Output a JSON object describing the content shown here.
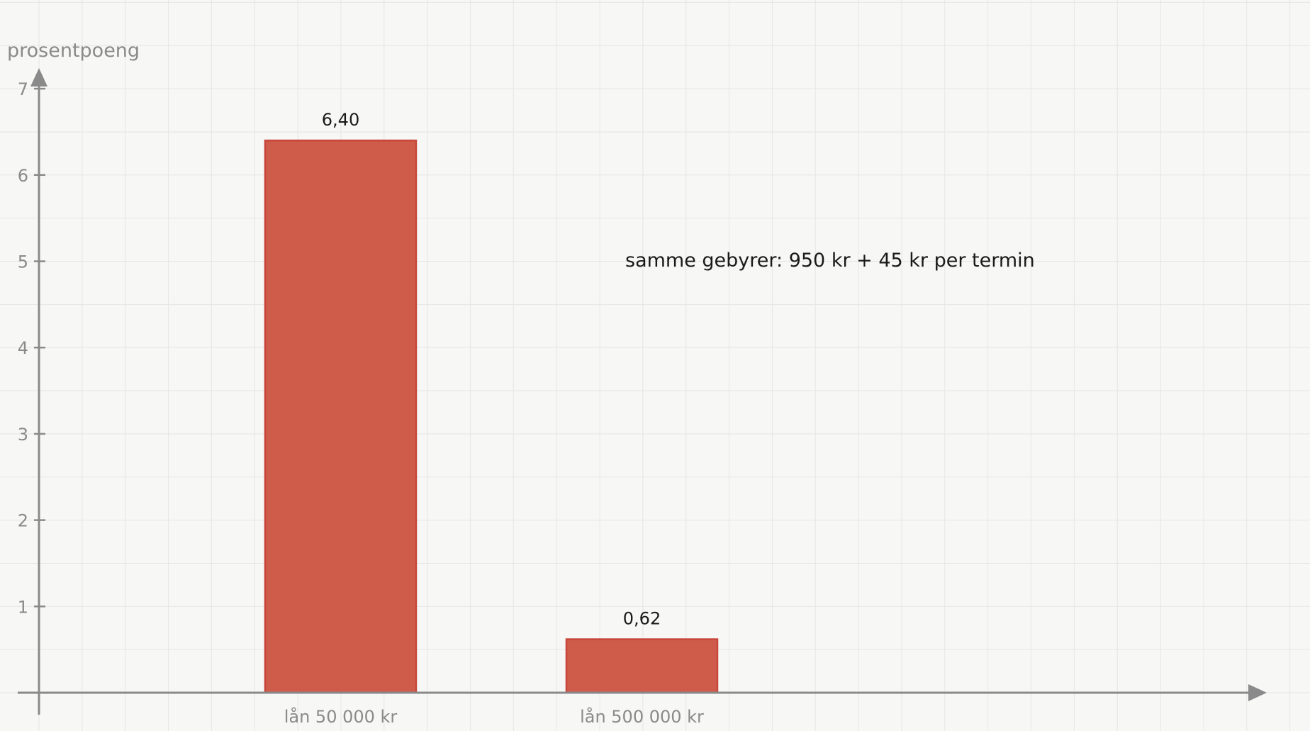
{
  "chart_data": {
    "type": "bar",
    "title": "",
    "ylabel": "prosentpoeng",
    "xlabel": "",
    "ylim": [
      0,
      7
    ],
    "yticks": [
      "1",
      "2",
      "3",
      "4",
      "5",
      "6",
      "7"
    ],
    "categories": [
      "lån 50 000 kr",
      "lån 500 000 kr"
    ],
    "values": [
      6.4,
      0.62
    ],
    "value_labels": [
      "6,40",
      "0,62"
    ],
    "annotation": "samme gebyrer: 950 kr + 45 kr per termin",
    "grid": true,
    "colors": {
      "bar_fill": "#cf5b4b",
      "bar_stroke": "#c8463a",
      "axis": "#8a8a8a",
      "grid": "#e6e6e4",
      "background": "#f7f7f5"
    }
  }
}
